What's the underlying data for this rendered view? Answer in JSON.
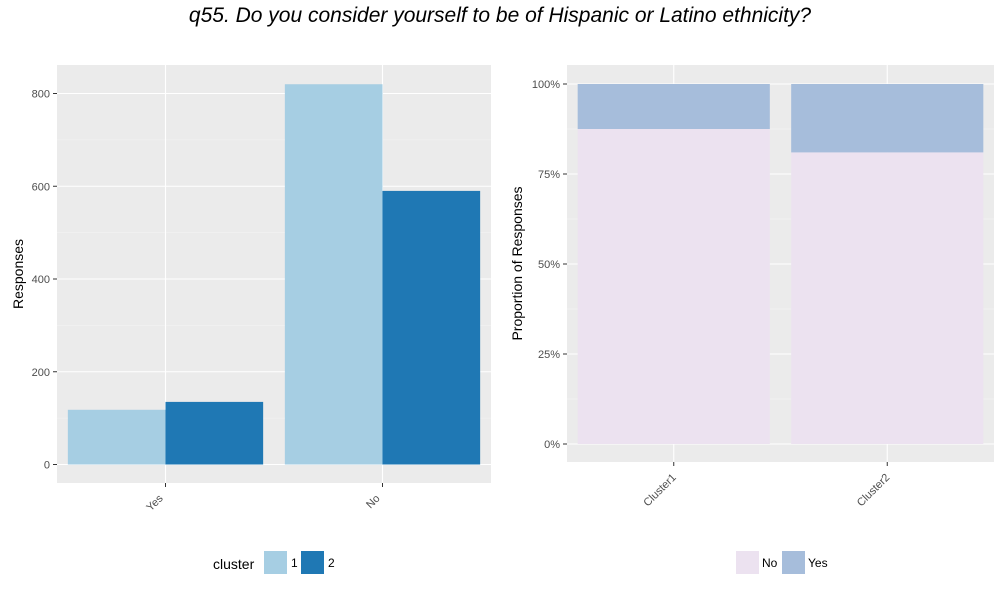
{
  "title": "q55. Do you consider yourself to be of Hispanic or Latino ethnicity?",
  "chart_data": [
    {
      "type": "bar",
      "categories": [
        "Yes",
        "No"
      ],
      "series": [
        {
          "name": "1",
          "values": [
            118,
            820
          ],
          "color": "#A6CEE3"
        },
        {
          "name": "2",
          "values": [
            135,
            590
          ],
          "color": "#1F78B4"
        }
      ],
      "ylabel": "Responses",
      "xlabel": "",
      "ylim": [
        0,
        900
      ],
      "yticks": [
        0,
        200,
        400,
        600,
        800
      ],
      "grid": true,
      "legend": {
        "title": "cluster",
        "position": "bottom"
      }
    },
    {
      "type": "bar",
      "stacked": true,
      "categories": [
        "Cluster1",
        "Cluster2"
      ],
      "series": [
        {
          "name": "No",
          "values": [
            0.875,
            0.81
          ],
          "color": "#ECE2F0"
        },
        {
          "name": "Yes",
          "values": [
            0.125,
            0.19
          ],
          "color": "#A6BDDB"
        }
      ],
      "ylabel": "Proportion of Responses",
      "xlabel": "",
      "ylim": [
        0,
        1
      ],
      "yticks": [
        0,
        0.25,
        0.5,
        0.75,
        1
      ],
      "ytick_labels": [
        "0%",
        "25%",
        "50%",
        "75%",
        "100%"
      ],
      "grid": true,
      "legend": {
        "title": "",
        "position": "bottom"
      }
    }
  ]
}
